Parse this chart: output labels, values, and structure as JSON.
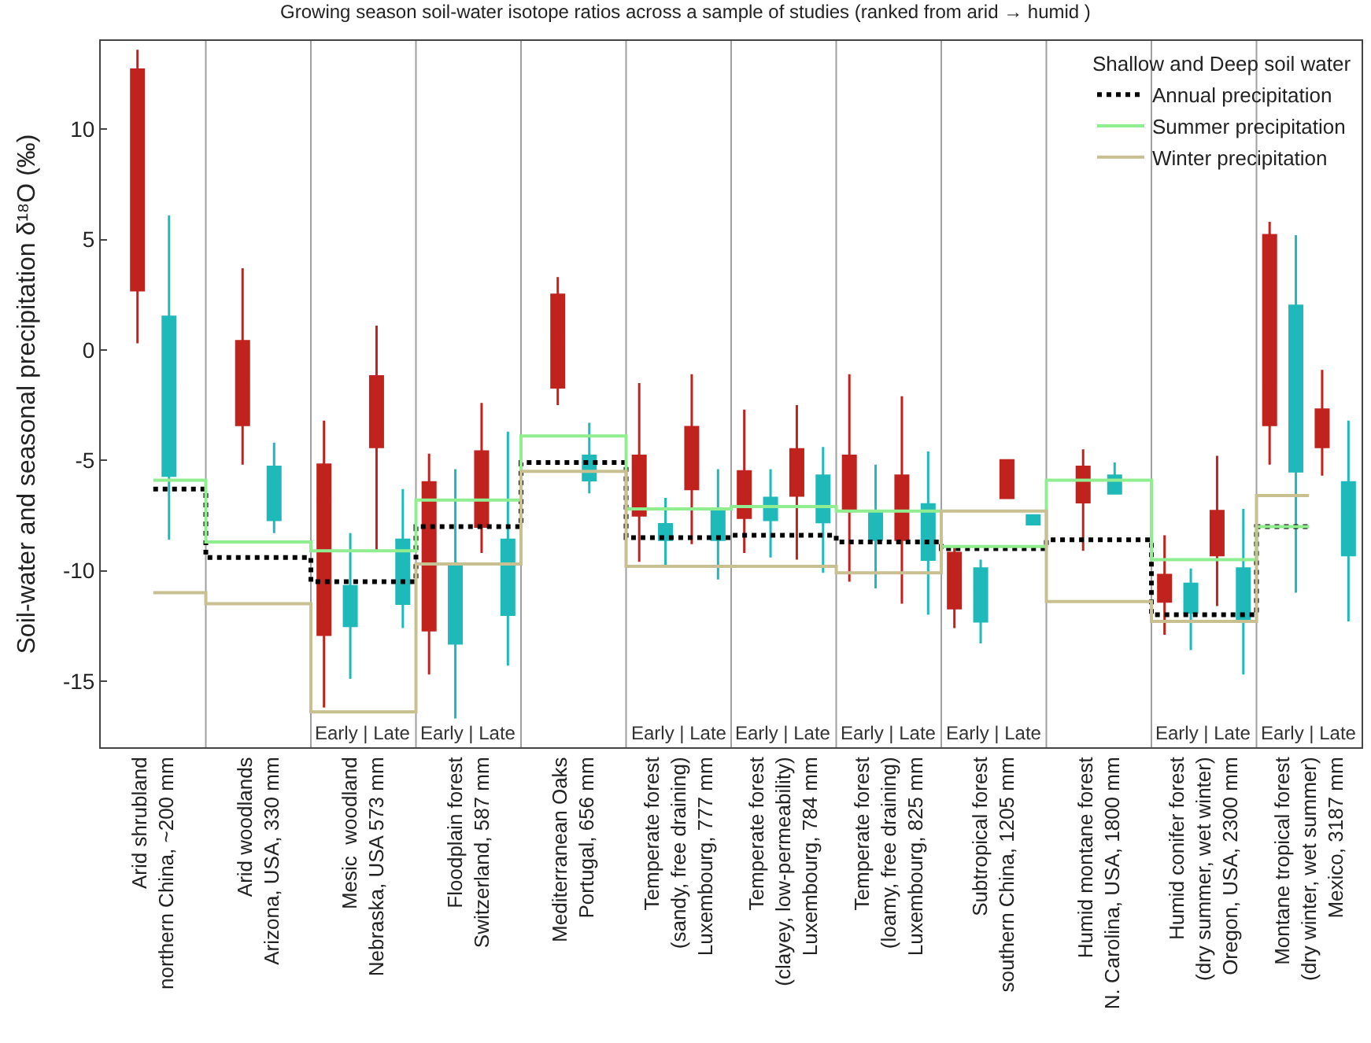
{
  "chart_data": {
    "type": "box",
    "title": "Growing season soil-water isotope ratios across a sample of studies (ranked from arid → humid )",
    "ylabel": "Soil-water and seasonal precipitation δ¹⁸O (‰)",
    "legend_title": "Shallow and Deep soil water",
    "legend": "top right",
    "grid": false,
    "ylim": [
      -18,
      14
    ],
    "yticks": [
      -15,
      -10,
      -5,
      0,
      5,
      10
    ],
    "categories": [
      "Arid shrubland\nnorthern China, ~200 mm",
      "Arid woodlands\nArizona, USA, 330 mm",
      "Mesic  woodland\nNebraska, USA 573 mm",
      "Floodplain forest\nSwitzerland, 587 mm",
      "Mediterranean Oaks\nPortugal, 656 mm",
      "Temperate forest\n(sandy, free draining)\nLuxembourg, 777 mm",
      "Temperate forest\n(clayey, low-permeability)\nLuxembourg, 784 mm",
      "Temperate forest\n(loamy, free draining)\nLuxembourg, 825 mm",
      "Subtropical forest\nsouthern China, 1205 mm",
      "Humid montane forest\nN. Carolina, USA, 1800 mm",
      "Humid conifer forest\n(dry summer, wet winter)\nOregon, USA, 2300 mm",
      "Montane tropical forest\n(dry winter, wet summer)\nMexico, 3187 mm"
    ],
    "series": [
      {
        "color": "#c0221e",
        "boxes": [
          {
            "low": 0.3,
            "q1": 2.7,
            "median": 9.9,
            "q3": 12.7,
            "high": 13.6
          },
          {
            "low": -5.2,
            "q1": -3.4,
            "median": -1.4,
            "q3": 0.4,
            "high": 3.7
          },
          {
            "low": -16.2,
            "q1": -12.9,
            "median": -6.9,
            "q3": -5.2,
            "high": -3.2
          },
          {
            "low": -14.7,
            "q1": -12.7,
            "median": -9.2,
            "q3": -6.0,
            "high": -4.7
          },
          {
            "low": -2.5,
            "q1": -1.7,
            "median": 0.5,
            "q3": 2.5,
            "high": 3.3
          },
          {
            "low": -9.6,
            "q1": -7.5,
            "median": -6.1,
            "q3": -4.8,
            "high": -1.5
          },
          {
            "low": -9.2,
            "q1": -7.6,
            "median": -6.9,
            "q3": -5.5,
            "high": -2.7
          },
          {
            "low": -10.5,
            "q1": -7.3,
            "median": -6.1,
            "q3": -4.8,
            "high": -1.1
          },
          {
            "low": -12.6,
            "q1": -11.7,
            "median": -10.1,
            "q3": -9.2,
            "high": -8.9
          },
          {
            "low": -9.1,
            "q1": -6.9,
            "median": -5.5,
            "q3": -5.3,
            "high": -4.5
          },
          {
            "low": -12.9,
            "q1": -11.4,
            "median": -10.8,
            "q3": -10.2,
            "high": -8.4
          },
          {
            "low": -5.2,
            "q1": -3.4,
            "median": -1.6,
            "q3": 5.2,
            "high": 5.8
          }
        ]
      },
      {
        "color": "#1fb9b9",
        "boxes": [
          {
            "low": -8.6,
            "q1": -5.7,
            "median": -1.6,
            "q3": 1.5,
            "high": 6.1
          },
          {
            "low": -8.3,
            "q1": -7.7,
            "median": -5.7,
            "q3": -5.3,
            "high": -4.2
          },
          {
            "low": -14.9,
            "q1": -12.5,
            "median": -11.5,
            "q3": -10.7,
            "high": -8.3
          },
          {
            "low": -16.7,
            "q1": -13.3,
            "median": -11.3,
            "q3": -9.8,
            "high": -5.4
          },
          {
            "low": -6.5,
            "q1": -5.9,
            "median": -5.3,
            "q3": -4.8,
            "high": -3.3
          },
          {
            "low": -9.8,
            "q1": -8.6,
            "median": -8.2,
            "q3": -7.9,
            "high": -6.7
          },
          {
            "low": -9.4,
            "q1": -7.7,
            "median": -7.2,
            "q3": -6.7,
            "high": -5.4
          },
          {
            "low": -10.8,
            "q1": -8.6,
            "median": -8.0,
            "q3": -7.4,
            "high": -5.2
          },
          {
            "low": -13.3,
            "q1": -12.3,
            "median": -10.8,
            "q3": -9.9,
            "high": -9.5
          },
          {
            "low": -6.5,
            "q1": -6.5,
            "median": -6.2,
            "q3": -5.7,
            "high": -5.1
          },
          {
            "low": -13.6,
            "q1": -11.9,
            "median": -11.2,
            "q3": -10.6,
            "high": -9.9
          },
          {
            "low": -11.0,
            "q1": -5.5,
            "median": -2.3,
            "q3": 2.0,
            "high": 5.2
          }
        ]
      },
      {
        "color": "#c0221e",
        "boxes": [
          null,
          null,
          {
            "low": -9.1,
            "q1": -4.4,
            "median": -3.6,
            "q3": -1.2,
            "high": 1.1
          },
          {
            "low": -9.2,
            "q1": -8.0,
            "median": -5.7,
            "q3": -4.6,
            "high": -2.4
          },
          null,
          {
            "low": -8.8,
            "q1": -6.3,
            "median": -4.5,
            "q3": -3.5,
            "high": -1.1
          },
          {
            "low": -9.5,
            "q1": -6.6,
            "median": -5.4,
            "q3": -4.5,
            "high": -2.5
          },
          {
            "low": -11.5,
            "q1": -8.6,
            "median": -7.0,
            "q3": -5.7,
            "high": -2.1
          },
          {
            "low": -6.7,
            "q1": -6.7,
            "median": -5.8,
            "q3": -5.0,
            "high": -5.0
          },
          null,
          {
            "low": -11.6,
            "q1": -9.3,
            "median": -8.2,
            "q3": -7.3,
            "high": -4.8
          },
          {
            "low": -5.7,
            "q1": -4.4,
            "median": -3.6,
            "q3": -2.7,
            "high": -0.9
          }
        ]
      },
      {
        "color": "#1fb9b9",
        "boxes": [
          null,
          null,
          {
            "low": -12.6,
            "q1": -11.5,
            "median": -10.5,
            "q3": -8.6,
            "high": -6.3
          },
          {
            "low": -14.3,
            "q1": -12.0,
            "median": -9.8,
            "q3": -8.6,
            "high": -3.7
          },
          null,
          {
            "low": -10.4,
            "q1": -8.6,
            "median": -8.0,
            "q3": -7.2,
            "high": -5.4
          },
          {
            "low": -10.1,
            "q1": -7.8,
            "median": -6.5,
            "q3": -5.7,
            "high": -4.4
          },
          {
            "low": -12.0,
            "q1": -9.5,
            "median": -8.1,
            "q3": -7.0,
            "high": -4.6
          },
          {
            "low": -7.9,
            "q1": -7.9,
            "median": -7.7,
            "q3": -7.5,
            "high": -7.5
          },
          null,
          {
            "low": -14.7,
            "q1": -12.2,
            "median": -11.1,
            "q3": -9.9,
            "high": -7.2
          },
          {
            "low": -12.3,
            "q1": -9.3,
            "median": -7.5,
            "q3": -6.0,
            "high": -3.2
          }
        ]
      },
      {
        "name": "Annual precipitation",
        "type": "step",
        "color": "#000000",
        "line_style": "dotted",
        "values": [
          -6.3,
          -9.4,
          -10.5,
          -8.0,
          -5.1,
          -8.5,
          -8.4,
          -8.7,
          -9.0,
          -8.6,
          -12.0,
          -8.0
        ]
      },
      {
        "name": "Summer precipitation",
        "type": "step",
        "color": "#90ee90",
        "line_style": "solid",
        "values": [
          -5.9,
          -8.7,
          -9.1,
          -6.8,
          -3.9,
          -7.2,
          -7.1,
          -7.3,
          -8.9,
          -5.9,
          -9.5,
          -8.0
        ]
      },
      {
        "name": "Winter precipitation",
        "type": "step",
        "color": "#c8c090",
        "line_style": "solid",
        "values": [
          -11.0,
          -11.5,
          -16.4,
          -9.7,
          -5.5,
          -9.8,
          -9.8,
          -10.1,
          -7.3,
          -11.4,
          -12.3,
          -6.6
        ]
      }
    ],
    "annotations": [
      "Early | Late",
      "Early | Late",
      "Early | Late",
      "Early | Late",
      "Early | Late",
      "Early | Late",
      "Early | Late",
      "Early | Late"
    ]
  }
}
